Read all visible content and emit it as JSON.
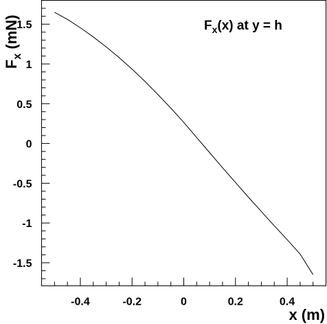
{
  "chart_data": {
    "type": "line",
    "annotation": {
      "main": "F",
      "sub": "x",
      "rest": "(x) at y = h"
    },
    "xlabel": "x (m)",
    "ylabel": {
      "main": "F",
      "sub": "x",
      "rest": " (mN)"
    },
    "xlim": [
      -0.55,
      0.55
    ],
    "ylim": [
      -1.79,
      1.8
    ],
    "x_major_ticks": [
      -0.4,
      -0.2,
      0,
      0.2,
      0.4
    ],
    "x_tick_labels": [
      "-0.4",
      "-0.2",
      "0",
      "0.2",
      "0.4"
    ],
    "y_major_ticks": [
      -1.5,
      -1,
      -0.5,
      0,
      0.5,
      1,
      1.5
    ],
    "y_tick_labels": [
      "-1.5",
      "-1",
      "-0.5",
      "0",
      "0.5",
      "1",
      "1.5"
    ],
    "grid": false,
    "series": [
      {
        "x": [
          -0.5,
          -0.45,
          -0.4,
          -0.35,
          -0.3,
          -0.25,
          -0.2,
          -0.15,
          -0.1,
          -0.05,
          0,
          0.05,
          0.1,
          0.15,
          0.2,
          0.25,
          0.3,
          0.35,
          0.4,
          0.45,
          0.5
        ],
        "y": [
          1.65,
          1.56,
          1.455,
          1.34,
          1.215,
          1.08,
          0.935,
          0.78,
          0.615,
          0.445,
          0.265,
          0.075,
          -0.115,
          -0.305,
          -0.49,
          -0.675,
          -0.855,
          -1.035,
          -1.21,
          -1.39,
          -1.65
        ]
      }
    ]
  }
}
